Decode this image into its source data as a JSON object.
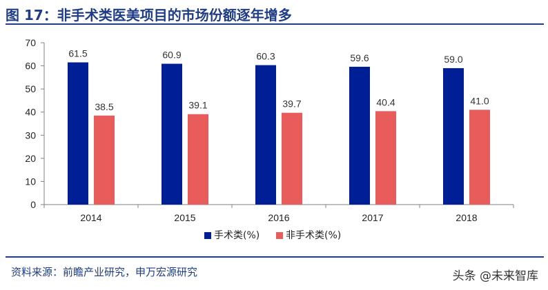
{
  "figure": {
    "title": "图 17：非手术类医美项目的市场份额逐年增多",
    "source": "资料来源：前瞻产业研究，申万宏源研究",
    "watermark": "头条 @未来智库"
  },
  "colors": {
    "title": "#1f3c88",
    "series1": "#001e96",
    "series2": "#e85c5c",
    "axis": "#808080"
  },
  "chart_data": {
    "type": "bar",
    "categories": [
      "2014",
      "2015",
      "2016",
      "2017",
      "2018"
    ],
    "series": [
      {
        "name": "手术类(%)",
        "values": [
          61.5,
          60.9,
          60.3,
          59.6,
          59.0
        ],
        "color": "#001e96"
      },
      {
        "name": "非手术类(%)",
        "values": [
          38.5,
          39.1,
          39.7,
          40.4,
          41.0
        ],
        "color": "#e85c5c"
      }
    ],
    "ylim": [
      0,
      70
    ],
    "yticks": [
      0,
      10,
      20,
      30,
      40,
      50,
      60,
      70
    ],
    "data_labels": [
      [
        "61.5",
        "60.9",
        "60.3",
        "59.6",
        "59.0"
      ],
      [
        "38.5",
        "39.1",
        "39.7",
        "40.4",
        "41.0"
      ]
    ],
    "grid": false,
    "legend_position": "bottom-center"
  }
}
